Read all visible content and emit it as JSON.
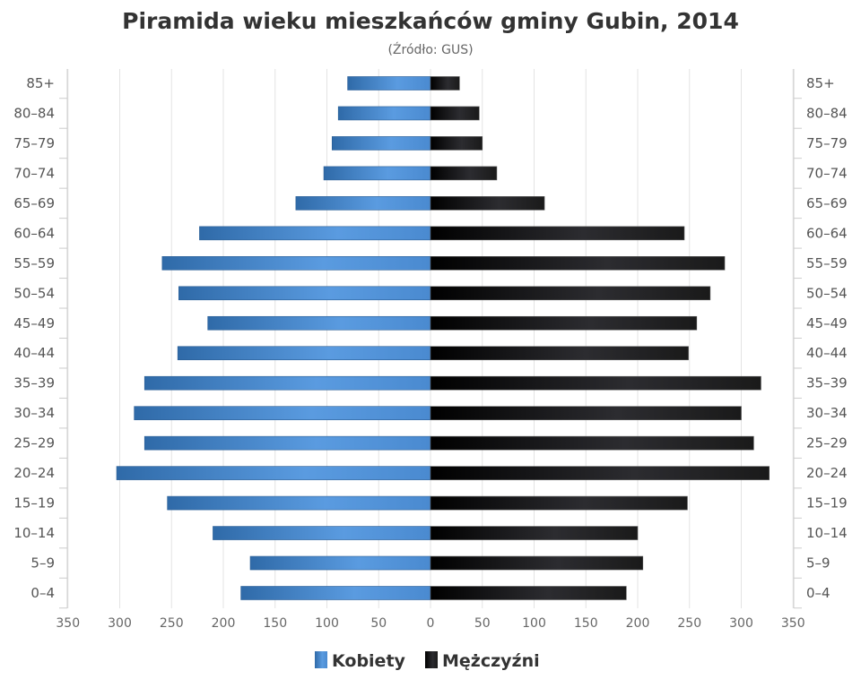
{
  "chart_data": {
    "type": "bar",
    "orientation": "horizontal-pyramid",
    "title": "Piramida wieku mieszkańców gminy Gubin, 2014",
    "subtitle": "(Źródło: GUS)",
    "categories": [
      "85+",
      "80-84",
      "75-79",
      "70-74",
      "65-69",
      "60-64",
      "55-59",
      "50-54",
      "45-49",
      "40-44",
      "35-39",
      "30-34",
      "25-29",
      "20-24",
      "15-19",
      "10-14",
      "5-9",
      "0-4"
    ],
    "series": [
      {
        "name": "Kobiety",
        "side": "left",
        "color": "#4a8fd4",
        "values": [
          80,
          89,
          95,
          103,
          130,
          223,
          259,
          243,
          215,
          244,
          276,
          286,
          276,
          303,
          254,
          210,
          174,
          183
        ]
      },
      {
        "name": "Mężczyźni",
        "side": "right",
        "color": "#1a1a1a",
        "values": [
          28,
          47,
          50,
          64,
          110,
          245,
          284,
          270,
          257,
          249,
          319,
          300,
          312,
          327,
          248,
          200,
          205,
          189
        ]
      }
    ],
    "x_ticks": [
      350,
      300,
      250,
      200,
      150,
      100,
      50,
      0,
      50,
      100,
      150,
      200,
      250,
      300,
      350
    ],
    "xlim": [
      -350,
      350
    ],
    "grid": true,
    "legend_position": "bottom"
  }
}
